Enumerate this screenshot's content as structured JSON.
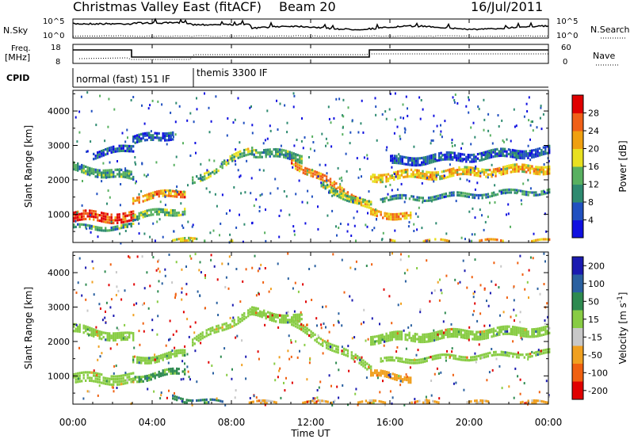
{
  "header": {
    "title": "Christmas Valley East (fitACF)",
    "beam": "Beam 20",
    "date": "16/Jul/2011"
  },
  "panels": {
    "nsky": {
      "label": "N.Sky",
      "left_ticks": [
        "10^5",
        "10^0"
      ],
      "right_ticks": [
        "10^5",
        "10^0"
      ],
      "right_label": "N.Search"
    },
    "freq": {
      "label_line1": "Freq.",
      "label_line2": "[MHz]",
      "left_ticks": [
        "18",
        "8"
      ],
      "right_ticks": [
        "60",
        "0"
      ],
      "right_label": "Nave"
    },
    "cpid": {
      "label": "CPID",
      "segments": [
        {
          "label": "normal (fast) 151 IF",
          "start_hour": 0,
          "end_hour": 6.1
        },
        {
          "label": "themis 3300 IF",
          "start_hour": 6.1,
          "end_hour": 24
        }
      ]
    }
  },
  "x_axis": {
    "label": "Time UT",
    "ticks": [
      "00:00",
      "04:00",
      "08:00",
      "12:00",
      "16:00",
      "20:00",
      "00:00"
    ],
    "range_hours": [
      0,
      24
    ]
  },
  "chart_data": [
    {
      "type": "heatmap",
      "name": "power",
      "ylabel": "Slant Range [km]",
      "ylim": [
        180,
        4600
      ],
      "yticks": [
        1000,
        2000,
        3000,
        4000
      ],
      "colorbar": {
        "label": "Power [dB]",
        "ticks": [
          "4",
          "8",
          "12",
          "16",
          "20",
          "24",
          "28"
        ],
        "range": [
          0,
          30
        ],
        "colors": [
          "#1010e0",
          "#2050c0",
          "#2e8a70",
          "#58b060",
          "#e8e020",
          "#f0a010",
          "#f06018",
          "#e00000"
        ]
      },
      "echo_bands": [
        {
          "h0": 0.0,
          "h1": 3.0,
          "r0": 1000,
          "r1": 1000,
          "w": 320,
          "v": 27
        },
        {
          "h0": 0.0,
          "h1": 3.0,
          "r0": 680,
          "r1": 700,
          "w": 140,
          "v": 11
        },
        {
          "h0": 0.0,
          "h1": 3.0,
          "r0": 2420,
          "r1": 2150,
          "w": 260,
          "v": 11
        },
        {
          "h0": 1.0,
          "h1": 3.0,
          "r0": 2800,
          "r1": 3000,
          "w": 220,
          "v": 5
        },
        {
          "h0": 3.0,
          "h1": 5.6,
          "r0": 1520,
          "r1": 1700,
          "w": 220,
          "v": 22
        },
        {
          "h0": 3.0,
          "h1": 5.6,
          "r0": 1000,
          "r1": 1200,
          "w": 220,
          "v": 12
        },
        {
          "h0": 3.0,
          "h1": 5.0,
          "r0": 3200,
          "r1": 3400,
          "w": 260,
          "v": 5
        },
        {
          "h0": 5.0,
          "h1": 8.0,
          "r0": 300,
          "r1": 250,
          "w": 140,
          "v": 16
        },
        {
          "h0": 6.0,
          "h1": 9.0,
          "r0": 2050,
          "r1": 2950,
          "w": 240,
          "v": 14
        },
        {
          "h0": 9.0,
          "h1": 11.5,
          "r0": 2900,
          "r1": 2700,
          "w": 260,
          "v": 11
        },
        {
          "h0": 11.0,
          "h1": 15.0,
          "r0": 2600,
          "r1": 1300,
          "w": 240,
          "v": 22
        },
        {
          "h0": 12.5,
          "h1": 15.0,
          "r0": 1900,
          "r1": 1300,
          "w": 200,
          "v": 14
        },
        {
          "h0": 15.0,
          "h1": 17.0,
          "r0": 1120,
          "r1": 1000,
          "w": 220,
          "v": 21
        },
        {
          "h0": 15.0,
          "h1": 24.0,
          "r0": 2150,
          "r1": 2400,
          "w": 260,
          "v": 19
        },
        {
          "h0": 15.5,
          "h1": 24.0,
          "r0": 1500,
          "r1": 1750,
          "w": 160,
          "v": 10
        },
        {
          "h0": 16.0,
          "h1": 24.0,
          "r0": 2600,
          "r1": 2900,
          "w": 260,
          "v": 6
        },
        {
          "h0": 16.0,
          "h1": 24.0,
          "r0": 250,
          "r1": 250,
          "w": 120,
          "v": 20
        }
      ]
    },
    {
      "type": "heatmap",
      "name": "velocity",
      "ylabel": "Slant Range [km]",
      "ylim": [
        180,
        4600
      ],
      "yticks": [
        1000,
        2000,
        3000,
        4000
      ],
      "colorbar": {
        "label": "Velocity [m s^-1]",
        "ticks": [
          "200",
          "100",
          "50",
          "15",
          "-15",
          "-50",
          "-100",
          "-200"
        ],
        "colors": [
          "#1a1ab0",
          "#2a60a0",
          "#2e8a50",
          "#88cc44",
          "#c8c8c8",
          "#f0a020",
          "#f06010",
          "#e00000"
        ]
      },
      "echo_bands": [
        {
          "h0": 0.0,
          "h1": 3.0,
          "r0": 1000,
          "r1": 1000,
          "w": 320,
          "v": 15
        },
        {
          "h0": 0.0,
          "h1": 3.0,
          "r0": 2420,
          "r1": 2150,
          "w": 260,
          "v": 15
        },
        {
          "h0": 3.0,
          "h1": 5.6,
          "r0": 1520,
          "r1": 1700,
          "w": 220,
          "v": 15
        },
        {
          "h0": 3.0,
          "h1": 5.6,
          "r0": 1000,
          "r1": 1200,
          "w": 200,
          "v": 40
        },
        {
          "h0": 5.0,
          "h1": 7.5,
          "r0": 450,
          "r1": 250,
          "w": 160,
          "v": 70
        },
        {
          "h0": 6.0,
          "h1": 9.0,
          "r0": 2050,
          "r1": 2950,
          "w": 240,
          "v": 15
        },
        {
          "h0": 9.0,
          "h1": 11.5,
          "r0": 2900,
          "r1": 2700,
          "w": 260,
          "v": 15
        },
        {
          "h0": 11.0,
          "h1": 15.0,
          "r0": 2600,
          "r1": 1300,
          "w": 240,
          "v": 15
        },
        {
          "h0": 15.0,
          "h1": 24.0,
          "r0": 2150,
          "r1": 2400,
          "w": 280,
          "v": 15
        },
        {
          "h0": 15.5,
          "h1": 24.0,
          "r0": 1500,
          "r1": 1750,
          "w": 160,
          "v": 15
        },
        {
          "h0": 15.0,
          "h1": 17.0,
          "r0": 1120,
          "r1": 1000,
          "w": 200,
          "v": -60
        },
        {
          "h0": 8.0,
          "h1": 24.0,
          "r0": 260,
          "r1": 260,
          "w": 120,
          "v": -40
        }
      ]
    }
  ]
}
